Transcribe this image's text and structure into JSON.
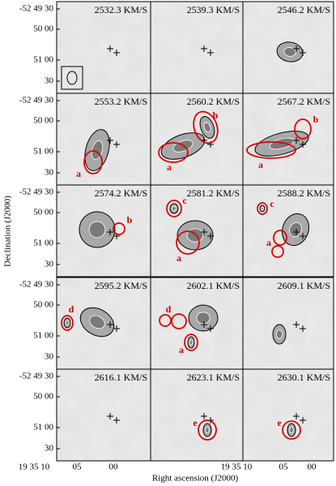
{
  "axes": {
    "ylabel": "Declination (J2000)",
    "xlabel": "Right ascension (J2000)",
    "yticks": [
      "-52 49 30",
      "50 00",
      "51 00",
      "30"
    ],
    "xticks": [
      "19 35 10",
      "05",
      "00"
    ]
  },
  "panels": [
    {
      "velocity": "2532.3 KM/S",
      "regions": []
    },
    {
      "velocity": "2539.3 KM/S",
      "regions": []
    },
    {
      "velocity": "2546.2 KM/S",
      "regions": []
    },
    {
      "velocity": "2553.2 KM/S",
      "regions": [
        "a"
      ]
    },
    {
      "velocity": "2560.2 KM/S",
      "regions": [
        "a",
        "b"
      ]
    },
    {
      "velocity": "2567.2 KM/S",
      "regions": [
        "a",
        "b"
      ]
    },
    {
      "velocity": "2574.2 KM/S",
      "regions": [
        "b"
      ]
    },
    {
      "velocity": "2581.2 KM/S",
      "regions": [
        "c",
        "a"
      ]
    },
    {
      "velocity": "2588.2 KM/S",
      "regions": [
        "c",
        "a"
      ]
    },
    {
      "velocity": "2595.2 KM/S",
      "regions": [
        "d"
      ]
    },
    {
      "velocity": "2602.1 KM/S",
      "regions": [
        "d",
        "a"
      ]
    },
    {
      "velocity": "2609.1 KM/S",
      "regions": []
    },
    {
      "velocity": "2616.1 KM/S",
      "regions": []
    },
    {
      "velocity": "2623.1 KM/S",
      "regions": [
        "e"
      ]
    },
    {
      "velocity": "2630.1 KM/S",
      "regions": [
        "e"
      ]
    }
  ]
}
